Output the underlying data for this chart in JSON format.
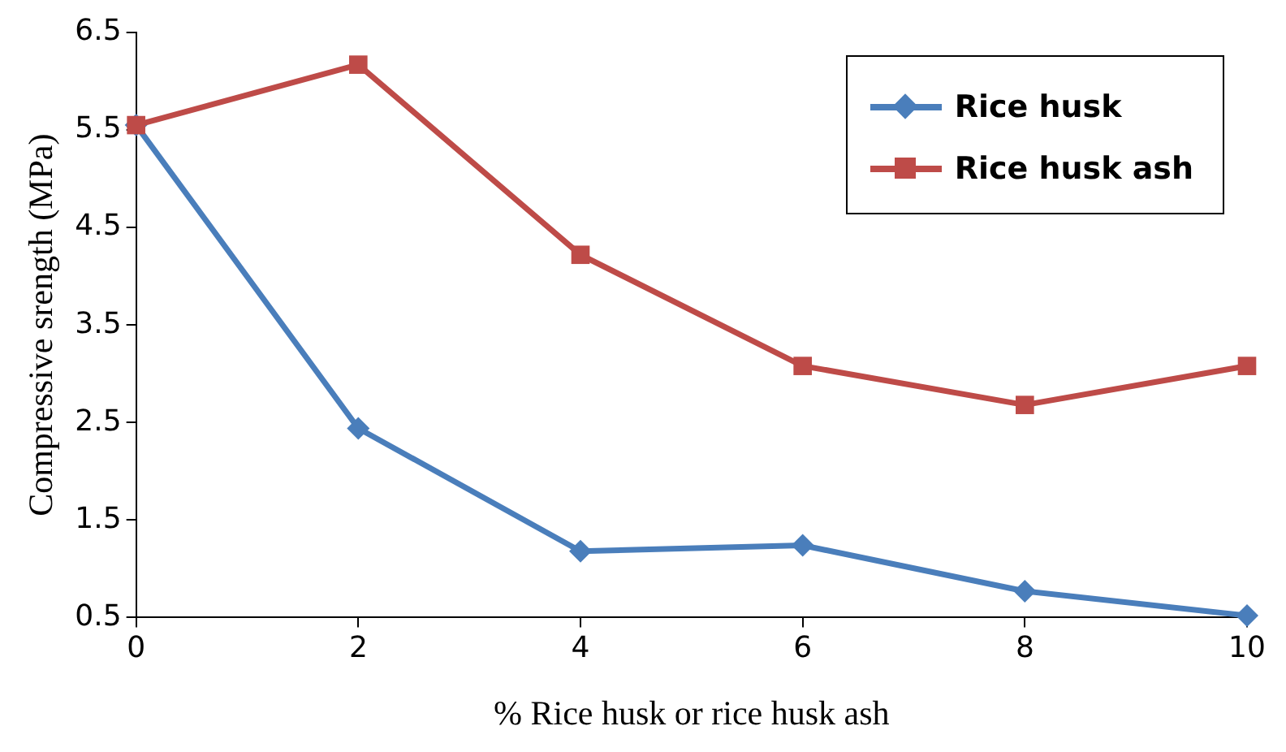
{
  "chart_data": {
    "type": "line",
    "xlabel": "% Rice husk or rice husk ash",
    "ylabel": "Compressive srength (MPa)",
    "x": [
      0,
      2,
      4,
      6,
      8,
      10
    ],
    "series": [
      {
        "name": "Rice husk",
        "color": "#4a7ebb",
        "marker": "diamond",
        "values": [
          5.55,
          2.44,
          1.18,
          1.24,
          0.77,
          0.52
        ]
      },
      {
        "name": "Rice husk ash",
        "color": "#be4b48",
        "marker": "square",
        "values": [
          5.55,
          6.17,
          4.22,
          3.08,
          2.68,
          3.08
        ]
      }
    ],
    "xlim": [
      0,
      10
    ],
    "xticks": [
      0,
      2,
      4,
      6,
      8,
      10
    ],
    "ylim": [
      0.5,
      6.5
    ],
    "yticks": [
      0.5,
      1.5,
      2.5,
      3.5,
      4.5,
      5.5,
      6.5
    ],
    "grid": false,
    "legend": "top right",
    "line_style": "solid"
  }
}
